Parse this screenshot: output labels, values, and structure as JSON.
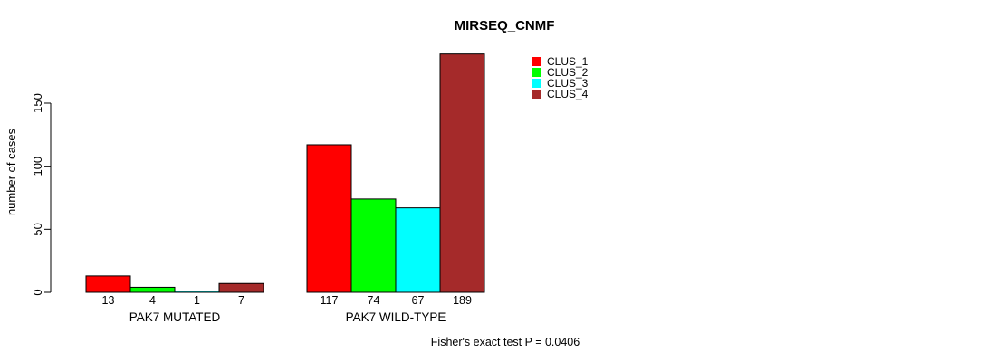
{
  "chart_data": {
    "type": "bar",
    "title": "MIRSEQ_CNMF",
    "ylabel": "number of cases",
    "xlabel": "",
    "categories": [
      "PAK7 MUTATED",
      "PAK7 WILD-TYPE"
    ],
    "series": [
      {
        "name": "CLUS_1",
        "color": "#FF0000",
        "values": [
          13,
          117
        ]
      },
      {
        "name": "CLUS_2",
        "color": "#00FF00",
        "values": [
          4,
          74
        ]
      },
      {
        "name": "CLUS_3",
        "color": "#00FFFF",
        "values": [
          1,
          67
        ]
      },
      {
        "name": "CLUS_4",
        "color": "#A52A2A",
        "values": [
          7,
          189
        ]
      }
    ],
    "bar_value_labels": [
      [
        "13",
        "4",
        "1",
        "7"
      ],
      [
        "117",
        "74",
        "67",
        "189"
      ]
    ],
    "yticks": [
      0,
      50,
      100,
      150
    ],
    "ylim": [
      0,
      150
    ],
    "grid": false,
    "legend_position": "top-right",
    "annotation": "Fisher's exact test P = 0.0406"
  }
}
